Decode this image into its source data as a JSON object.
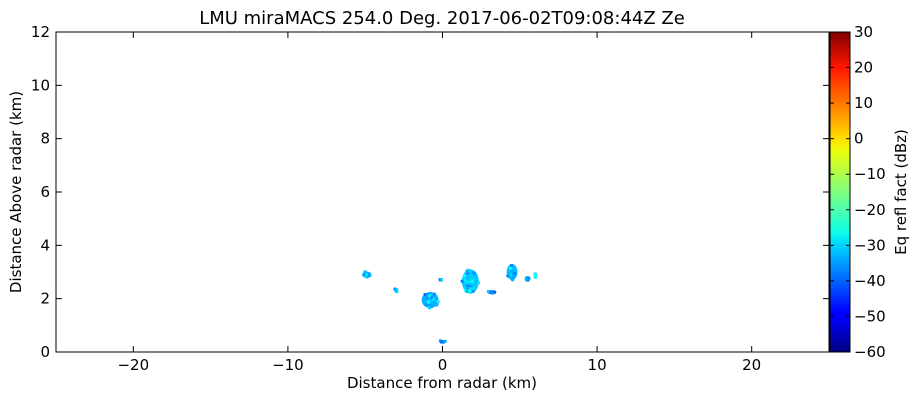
{
  "chart_data": {
    "type": "heatmap",
    "title": "LMU miraMACS 254.0 Deg. 2017-06-02T09:08:44Z  Ze",
    "xlabel": "Distance from radar (km)",
    "ylabel": "Distance Above radar  (km)",
    "xlim": [
      -25,
      25
    ],
    "ylim": [
      0,
      12
    ],
    "x_ticks": [
      -20,
      -10,
      0,
      10,
      20
    ],
    "x_tick_labels": [
      "−20",
      "−10",
      "0",
      "10",
      "20"
    ],
    "y_ticks": [
      0,
      2,
      4,
      6,
      8,
      10,
      12
    ],
    "y_tick_labels": [
      "0",
      "2",
      "4",
      "6",
      "8",
      "10",
      "12"
    ],
    "grid": false,
    "colorbar": {
      "label": "Eq refl fact (dBz)",
      "range": [
        -60,
        30
      ],
      "colormap": "jet",
      "ticks": [
        30,
        20,
        10,
        0,
        -10,
        -20,
        -30,
        -40,
        -50,
        -60
      ],
      "tick_labels": [
        "30",
        "20",
        "10",
        "0",
        "−10",
        "−20",
        "−30",
        "−40",
        "−50",
        "−60"
      ]
    },
    "echo_cells": [
      {
        "x": -4.9,
        "y": 2.9,
        "rx": 0.3,
        "ry": 0.12,
        "dbz": -34
      },
      {
        "x": -3.0,
        "y": 2.3,
        "rx": 0.1,
        "ry": 0.08,
        "dbz": -36
      },
      {
        "x": -0.8,
        "y": 1.95,
        "rx": 0.55,
        "ry": 0.3,
        "dbz": -33
      },
      {
        "x": -0.1,
        "y": 2.7,
        "rx": 0.06,
        "ry": 0.05,
        "dbz": -38
      },
      {
        "x": 1.8,
        "y": 2.65,
        "rx": 0.55,
        "ry": 0.45,
        "dbz": -31
      },
      {
        "x": 3.2,
        "y": 2.25,
        "rx": 0.3,
        "ry": 0.07,
        "dbz": -36
      },
      {
        "x": 4.5,
        "y": 3.0,
        "rx": 0.35,
        "ry": 0.3,
        "dbz": -32
      },
      {
        "x": 5.5,
        "y": 2.75,
        "rx": 0.2,
        "ry": 0.1,
        "dbz": -33
      },
      {
        "x": 6.0,
        "y": 2.85,
        "rx": 0.1,
        "ry": 0.08,
        "dbz": -30
      },
      {
        "x": 0.0,
        "y": 0.4,
        "rx": 0.18,
        "ry": 0.05,
        "dbz": -37
      }
    ]
  }
}
